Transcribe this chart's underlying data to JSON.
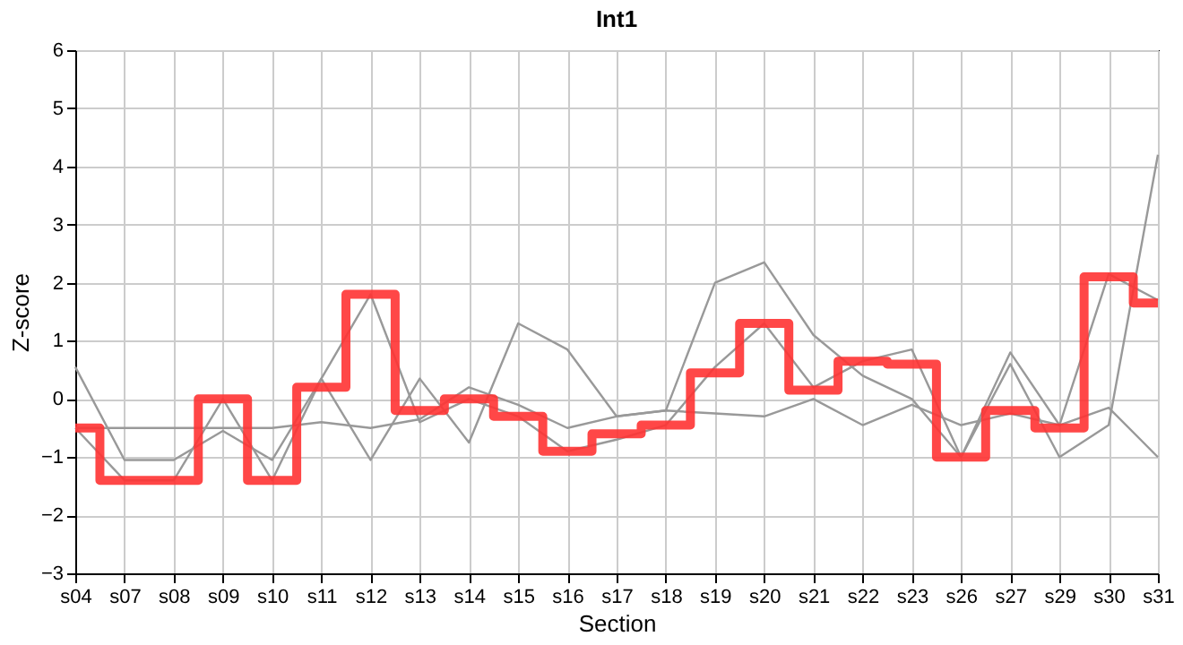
{
  "chart_data": {
    "type": "line",
    "title": "Int1",
    "xlabel": "Section",
    "ylabel": "Z-score",
    "categories": [
      "s04",
      "s07",
      "s08",
      "s09",
      "s10",
      "s11",
      "s12",
      "s13",
      "s14",
      "s15",
      "s16",
      "s17",
      "s18",
      "s19",
      "s20",
      "s21",
      "s22",
      "s23",
      "s26",
      "s27",
      "s29",
      "s30",
      "s31"
    ],
    "ylim": [
      -3,
      6
    ],
    "yticks": [
      -3,
      -2,
      -1,
      0,
      1,
      2,
      3,
      4,
      5,
      6
    ],
    "grid": true,
    "marker": "none",
    "line_style": "solid",
    "series": [
      {
        "color": "#999999",
        "values": [
          0.55,
          -1.05,
          -1.05,
          -0.55,
          -1.05,
          0.35,
          -1.05,
          0.35,
          -0.75,
          1.3,
          0.85,
          -0.3,
          -0.2,
          2.0,
          2.35,
          1.1,
          0.4,
          0.0,
          -1.0,
          0.6,
          -1.0,
          -0.45,
          4.2
        ]
      },
      {
        "color": "#999999",
        "values": [
          -0.5,
          -1.4,
          -1.4,
          0.0,
          -1.4,
          0.35,
          1.8,
          -0.4,
          0.0,
          -0.3,
          -0.9,
          -0.7,
          -0.45,
          0.55,
          1.3,
          0.2,
          0.65,
          0.85,
          -1.0,
          0.8,
          -0.45,
          2.15,
          1.7
        ]
      },
      {
        "color": "#999999",
        "values": [
          -0.5,
          -0.5,
          -0.5,
          -0.5,
          -0.5,
          -0.4,
          -0.5,
          -0.35,
          0.2,
          -0.1,
          -0.5,
          -0.3,
          -0.2,
          -0.25,
          -0.3,
          0.0,
          -0.45,
          -0.1,
          -0.45,
          -0.25,
          -0.45,
          -0.15,
          -1.0
        ]
      },
      {
        "color": "#ff3333",
        "type": "step",
        "values": [
          -0.5,
          -1.4,
          -1.4,
          0.0,
          -1.4,
          0.2,
          1.8,
          -0.2,
          0.0,
          -0.3,
          -0.9,
          -0.6,
          -0.45,
          0.45,
          1.3,
          0.15,
          0.65,
          0.6,
          -1.0,
          -0.2,
          -0.5,
          2.1,
          1.65
        ]
      }
    ]
  }
}
